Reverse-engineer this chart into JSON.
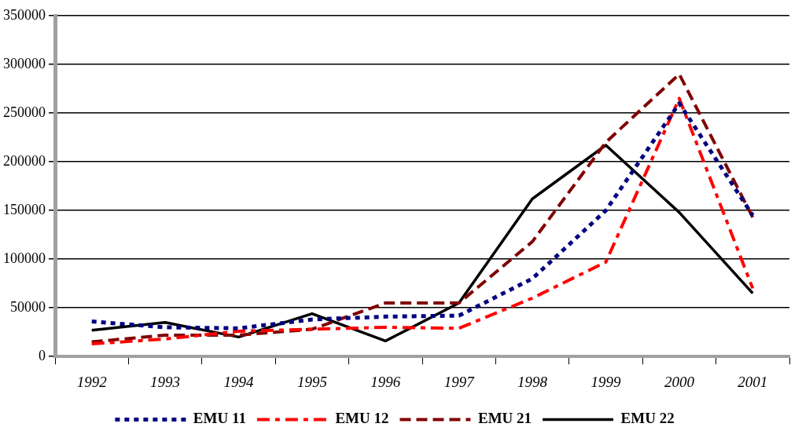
{
  "chart_data": {
    "type": "line",
    "categories": [
      "1992",
      "1993",
      "1994",
      "1995",
      "1996",
      "1997",
      "1998",
      "1999",
      "2000",
      "2001"
    ],
    "series": [
      {
        "name": "EMU 11",
        "color": "#000080",
        "line_style": "dotted",
        "values": [
          36000,
          30000,
          29000,
          38000,
          41000,
          42000,
          80000,
          150000,
          260000,
          145000
        ]
      },
      {
        "name": "EMU 12",
        "color": "#ff0000",
        "line_style": "dashdot",
        "values": [
          13000,
          18000,
          26000,
          28000,
          30000,
          29000,
          60000,
          97000,
          265000,
          70000
        ]
      },
      {
        "name": "EMU 21",
        "color": "#800000",
        "line_style": "dashed",
        "values": [
          15000,
          22000,
          22000,
          28000,
          55000,
          55000,
          118000,
          220000,
          290000,
          143000
        ]
      },
      {
        "name": "EMU 22",
        "color": "#000000",
        "line_style": "solid",
        "values": [
          27000,
          35000,
          20000,
          44000,
          16000,
          55000,
          162000,
          217000,
          148000,
          65000
        ]
      }
    ],
    "ylim": [
      0,
      350000
    ],
    "yticks": [
      0,
      50000,
      100000,
      150000,
      200000,
      250000,
      300000,
      350000
    ],
    "grid": "y",
    "legend": "bottom",
    "marker": "none"
  }
}
